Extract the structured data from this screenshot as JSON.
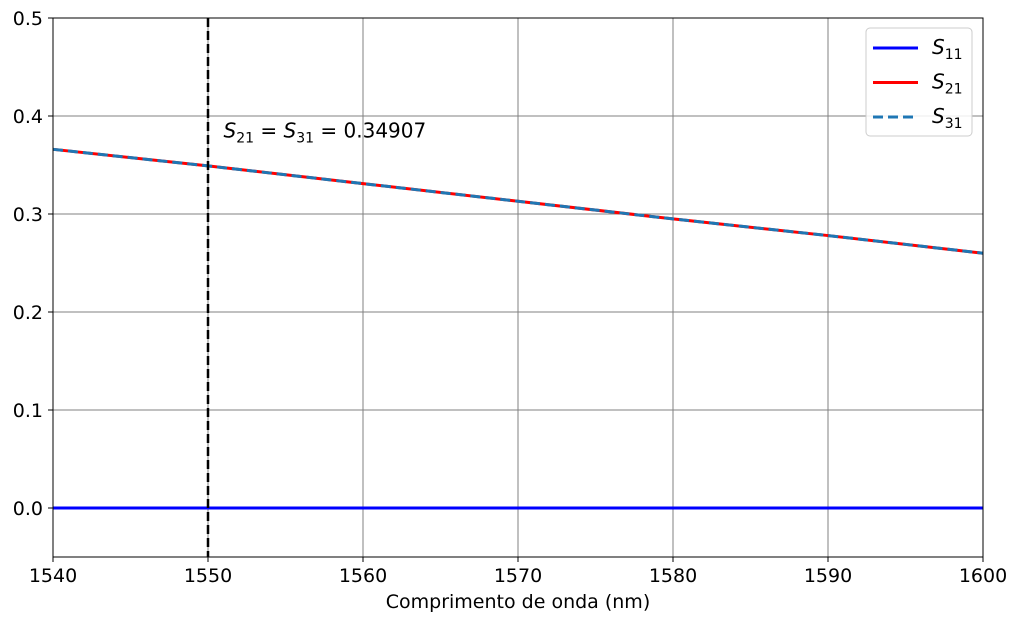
{
  "chart_data": {
    "type": "line",
    "xlabel": "Comprimento de onda (nm)",
    "ylabel": "",
    "xlim": [
      1540,
      1600
    ],
    "ylim": [
      -0.05,
      0.5
    ],
    "xticks": [
      "1540",
      "1550",
      "1560",
      "1570",
      "1580",
      "1590",
      "1600"
    ],
    "yticks": [
      "0.0",
      "0.1",
      "0.2",
      "0.3",
      "0.4",
      "0.5"
    ],
    "grid": true,
    "legend_position": "top-right",
    "series": [
      {
        "name": "S",
        "subscript": "11",
        "color": "#0000ff",
        "style": "solid",
        "x": [
          1540,
          1600
        ],
        "y": [
          0.0,
          0.0
        ]
      },
      {
        "name": "S",
        "subscript": "21",
        "color": "#ff0000",
        "style": "solid",
        "x": [
          1540,
          1550,
          1560,
          1570,
          1580,
          1590,
          1600
        ],
        "y": [
          0.366,
          0.34907,
          0.331,
          0.313,
          0.295,
          0.278,
          0.26
        ]
      },
      {
        "name": "S",
        "subscript": "31",
        "color": "#1f77b4",
        "style": "dashed",
        "x": [
          1540,
          1550,
          1560,
          1570,
          1580,
          1590,
          1600
        ],
        "y": [
          0.366,
          0.34907,
          0.331,
          0.313,
          0.295,
          0.278,
          0.26
        ]
      }
    ],
    "vline": {
      "x": 1550,
      "color": "#000000",
      "style": "dashed"
    },
    "annotation": {
      "text_parts": [
        "S",
        "21",
        " = ",
        "S",
        "31",
        " = 0.34907"
      ],
      "x": 1551,
      "y": 0.38
    }
  }
}
